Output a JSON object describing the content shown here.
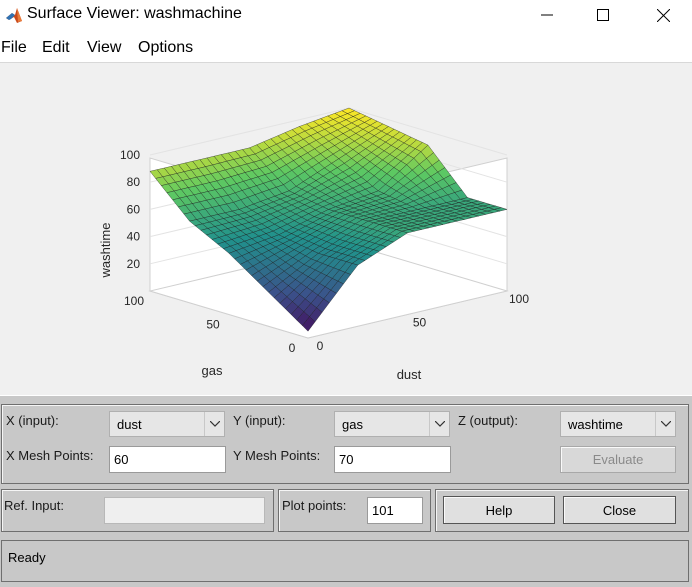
{
  "window": {
    "title": "Surface Viewer: washmachine",
    "icon": "matlab-icon",
    "minimize_icon": "minimize-icon",
    "maximize_icon": "maximize-icon",
    "close_icon": "close-icon"
  },
  "menu": {
    "items": [
      "File",
      "Edit",
      "View",
      "Options"
    ]
  },
  "plot": {
    "zlabel": "washtime",
    "xlabel": "dust",
    "ylabel": "gas",
    "z_ticks": [
      "20",
      "40",
      "60",
      "80",
      "100"
    ],
    "x_ticks": [
      "0",
      "50",
      "100"
    ],
    "y_ticks": [
      "0",
      "50",
      "100"
    ],
    "colormap": "viridis"
  },
  "chart_data": {
    "type": "surface",
    "title": "",
    "xlabel": "dust",
    "ylabel": "gas",
    "zlabel": "washtime",
    "xlim": [
      0,
      100
    ],
    "ylim": [
      0,
      100
    ],
    "zlim": [
      0,
      100
    ],
    "x": [
      0,
      25,
      50,
      75,
      100
    ],
    "y": [
      0,
      25,
      50,
      75,
      100
    ],
    "z": [
      [
        5,
        45,
        60,
        60,
        60
      ],
      [
        25,
        45,
        60,
        60,
        60
      ],
      [
        45,
        50,
        60,
        65,
        90
      ],
      [
        60,
        60,
        65,
        80,
        95
      ],
      [
        88,
        88,
        88,
        95,
        100
      ]
    ],
    "z_note_rows_are_gas": "",
    "grid": "on",
    "colormap": "viridis"
  },
  "controls": {
    "x_input_label": "X (input):",
    "x_input_value": "dust",
    "y_input_label": "Y (input):",
    "y_input_value": "gas",
    "z_output_label": "Z (output):",
    "z_output_value": "washtime",
    "x_mesh_label": "X Mesh Points:",
    "x_mesh_value": "60",
    "y_mesh_label": "Y Mesh Points:",
    "y_mesh_value": "70",
    "evaluate_label": "Evaluate",
    "ref_input_label": "Ref. Input:",
    "ref_input_value": "",
    "plot_points_label": "Plot points:",
    "plot_points_value": "101",
    "help_label": "Help",
    "close_label": "Close"
  },
  "status": {
    "text": "Ready"
  },
  "colors": {
    "panel_bg": "#c8c8c8",
    "plot_bg": "#f0f0f0",
    "surface_low": "#3b1b6b",
    "surface_mid": "#2a9a8c",
    "surface_high": "#f5e61a"
  }
}
